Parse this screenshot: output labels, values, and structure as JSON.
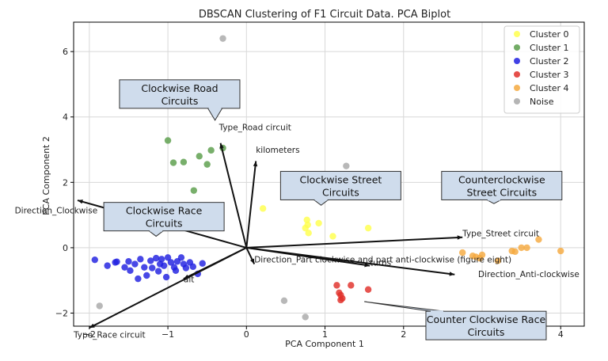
{
  "chart_data": {
    "type": "scatter",
    "title": "DBSCAN Clustering of F1 Circuit Data. PCA Biplot",
    "xlabel": "PCA Component 1",
    "ylabel": "PCA Component 2",
    "xlim": [
      -2.2,
      4.3
    ],
    "ylim": [
      -2.4,
      6.9
    ],
    "xticks": [
      -2,
      -1,
      0,
      1,
      2,
      3,
      4
    ],
    "yticks": [
      -2,
      0,
      2,
      4,
      6
    ],
    "grid": true,
    "legend_position": "top-right",
    "series": [
      {
        "name": "Cluster 0",
        "color": "#ffff4d",
        "points": [
          [
            0.21,
            1.2
          ],
          [
            0.75,
            0.6
          ],
          [
            0.77,
            0.85
          ],
          [
            0.78,
            0.7
          ],
          [
            0.79,
            0.45
          ],
          [
            0.92,
            0.75
          ],
          [
            1.1,
            0.35
          ],
          [
            1.55,
            0.6
          ]
        ]
      },
      {
        "name": "Cluster 1",
        "color": "#5a9e4b",
        "points": [
          [
            -1.0,
            3.28
          ],
          [
            -0.93,
            2.6
          ],
          [
            -0.8,
            2.62
          ],
          [
            -0.6,
            2.8
          ],
          [
            -0.5,
            2.55
          ],
          [
            -0.45,
            2.98
          ],
          [
            -0.3,
            3.05
          ],
          [
            -0.67,
            1.75
          ]
        ]
      },
      {
        "name": "Cluster 2",
        "color": "#2020e0",
        "points": [
          [
            -1.93,
            -0.37
          ],
          [
            -1.77,
            -0.55
          ],
          [
            -1.67,
            -0.45
          ],
          [
            -1.65,
            -0.43
          ],
          [
            -1.55,
            -0.6
          ],
          [
            -1.5,
            -0.42
          ],
          [
            -1.48,
            -0.7
          ],
          [
            -1.42,
            -0.5
          ],
          [
            -1.38,
            -0.95
          ],
          [
            -1.35,
            -0.35
          ],
          [
            -1.3,
            -0.6
          ],
          [
            -1.27,
            -0.85
          ],
          [
            -1.22,
            -0.4
          ],
          [
            -1.2,
            -0.62
          ],
          [
            -1.15,
            -0.32
          ],
          [
            -1.12,
            -0.72
          ],
          [
            -1.1,
            -0.5
          ],
          [
            -1.08,
            -0.35
          ],
          [
            -1.05,
            -0.55
          ],
          [
            -1.02,
            -0.9
          ],
          [
            -1.0,
            -0.3
          ],
          [
            -0.96,
            -0.45
          ],
          [
            -0.92,
            -0.6
          ],
          [
            -0.9,
            -0.7
          ],
          [
            -0.88,
            -0.42
          ],
          [
            -0.83,
            -0.3
          ],
          [
            -0.8,
            -0.5
          ],
          [
            -0.77,
            -0.62
          ],
          [
            -0.72,
            -0.45
          ],
          [
            -0.68,
            -0.58
          ],
          [
            -0.62,
            -0.8
          ],
          [
            -0.56,
            -0.48
          ]
        ]
      },
      {
        "name": "Cluster 3",
        "color": "#e0302a",
        "points": [
          [
            1.15,
            -1.15
          ],
          [
            1.18,
            -1.38
          ],
          [
            1.2,
            -1.45
          ],
          [
            1.22,
            -1.55
          ],
          [
            1.2,
            -1.6
          ],
          [
            1.33,
            -1.15
          ],
          [
            1.55,
            -1.28
          ]
        ]
      },
      {
        "name": "Cluster 4",
        "color": "#f5a940",
        "points": [
          [
            2.75,
            -0.15
          ],
          [
            2.88,
            -0.25
          ],
          [
            2.92,
            -0.28
          ],
          [
            2.97,
            -0.32
          ],
          [
            3.0,
            -0.22
          ],
          [
            3.38,
            -0.1
          ],
          [
            3.42,
            -0.12
          ],
          [
            3.5,
            0.0
          ],
          [
            3.57,
            0.0
          ],
          [
            3.72,
            0.25
          ],
          [
            4.0,
            -0.1
          ],
          [
            3.2,
            -0.4
          ]
        ]
      },
      {
        "name": "Noise",
        "color": "#a8a8a8",
        "points": [
          [
            -0.3,
            6.4
          ],
          [
            1.27,
            2.5
          ],
          [
            -1.87,
            -1.78
          ],
          [
            0.48,
            -1.62
          ],
          [
            0.75,
            -2.12
          ]
        ]
      }
    ],
    "loadings": [
      {
        "label": "Type_Road circuit",
        "end": [
          -0.33,
          3.2
        ],
        "label_at": [
          -0.35,
          3.6
        ]
      },
      {
        "label": "kilometers",
        "end": [
          0.12,
          2.65
        ],
        "label_at": [
          0.12,
          2.9
        ]
      },
      {
        "label": "Direction_Clockwise",
        "end": [
          -2.15,
          1.45
        ],
        "label_at": [
          -2.95,
          1.05
        ]
      },
      {
        "label": "Type_Street circuit",
        "end": [
          2.75,
          0.32
        ],
        "label_at": [
          2.75,
          0.35
        ]
      },
      {
        "label": "Direction_Part clockwise and part anti-clockwise (figure eight)",
        "end": [
          0.1,
          -0.5
        ],
        "label_at": [
          0.1,
          -0.45
        ]
      },
      {
        "label": "turns",
        "end": [
          1.57,
          -0.55
        ],
        "label_at": [
          1.57,
          -0.55
        ]
      },
      {
        "label": "Direction_Anti-clockwise",
        "end": [
          2.65,
          -0.82
        ],
        "label_at": [
          2.95,
          -0.9
        ]
      },
      {
        "label": "alt",
        "end": [
          -0.8,
          -0.95
        ],
        "label_at": [
          -0.8,
          -1.05
        ]
      },
      {
        "label": "Type_Race circuit",
        "end": [
          -2.0,
          -2.45
        ],
        "label_at": [
          -2.2,
          -2.75
        ]
      }
    ],
    "annotations": [
      {
        "text": [
          "Clockwise Road",
          "Circuits"
        ],
        "center": [
          -0.85,
          4.7
        ],
        "pointer_to": [
          -0.4,
          3.9
        ]
      },
      {
        "text": [
          "Clockwise Race",
          "Circuits"
        ],
        "center": [
          -1.05,
          0.95
        ],
        "pointer_to": [
          -1.15,
          0.35
        ]
      },
      {
        "text": [
          "Clockwise Street",
          "Circuits"
        ],
        "center": [
          1.2,
          1.9
        ],
        "pointer_to": [
          0.95,
          1.3
        ]
      },
      {
        "text": [
          "Counterclockwise",
          "Street Circuits"
        ],
        "center": [
          3.25,
          1.9
        ],
        "pointer_to": [
          3.15,
          1.35
        ]
      },
      {
        "text": [
          "Counter Clockwise Race",
          "Circuits"
        ],
        "center": [
          3.05,
          -2.38
        ],
        "pointer_to": [
          1.5,
          -1.65
        ]
      }
    ]
  }
}
